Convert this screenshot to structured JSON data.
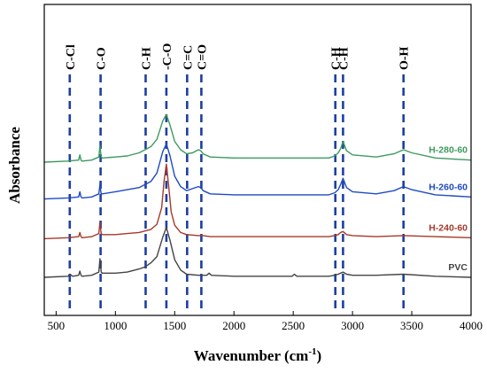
{
  "chart_data": {
    "type": "line",
    "title": "",
    "xlabel": "Wavenumber (cm",
    "xlabel_sup": "-1",
    "xlabel_close": ")",
    "ylabel": "Absorbance",
    "xlim": [
      400,
      4000
    ],
    "xticks": [
      "500",
      "1000",
      "1500",
      "2000",
      "2500",
      "3000",
      "3500",
      "4000"
    ],
    "grid": false,
    "band_color": "#1f3f9f",
    "bands": [
      {
        "label": "C-Cl",
        "x": 615
      },
      {
        "label": "C-O",
        "x": 875
      },
      {
        "label": "C-H",
        "x": 1255
      },
      {
        "label": "-C-O",
        "x": 1430
      },
      {
        "label": "C=C",
        "x": 1605
      },
      {
        "label": "C=O",
        "x": 1725
      },
      {
        "label": "C-H",
        "x": 2855
      },
      {
        "label": "C-H",
        "x": 2920
      },
      {
        "label": "O-H",
        "x": 3430
      }
    ],
    "series": [
      {
        "name": "H-280-60",
        "color": "#3d9a5e",
        "baseline": 1.0,
        "scale": 0.9,
        "x": [
          400,
          600,
          690,
          700,
          710,
          720,
          800,
          860,
          870,
          875,
          880,
          890,
          1000,
          1100,
          1200,
          1250,
          1300,
          1350,
          1400,
          1430,
          1460,
          1500,
          1550,
          1600,
          1650,
          1700,
          1720,
          1740,
          1800,
          2000,
          2500,
          2800,
          2850,
          2880,
          2900,
          2920,
          2950,
          3000,
          3200,
          3350,
          3430,
          3500,
          3700,
          4000
        ],
        "y": [
          0.0,
          0.01,
          0.02,
          0.07,
          0.02,
          0.01,
          0.02,
          0.05,
          0.16,
          0.1,
          0.05,
          0.04,
          0.05,
          0.06,
          0.09,
          0.12,
          0.15,
          0.22,
          0.4,
          0.46,
          0.36,
          0.2,
          0.12,
          0.08,
          0.09,
          0.12,
          0.11,
          0.08,
          0.05,
          0.04,
          0.04,
          0.04,
          0.06,
          0.09,
          0.13,
          0.2,
          0.11,
          0.07,
          0.05,
          0.08,
          0.12,
          0.09,
          0.04,
          0.02
        ]
      },
      {
        "name": "H-260-60",
        "color": "#1f4ac1",
        "baseline": 0.68,
        "scale": 0.9,
        "x": [
          400,
          600,
          690,
          700,
          710,
          720,
          800,
          860,
          870,
          875,
          880,
          890,
          1000,
          1100,
          1200,
          1250,
          1300,
          1350,
          1400,
          1430,
          1460,
          1500,
          1550,
          1600,
          1650,
          1700,
          1720,
          1740,
          1800,
          2000,
          2500,
          2800,
          2850,
          2880,
          2900,
          2920,
          2950,
          3000,
          3200,
          3350,
          3430,
          3500,
          3700,
          4000
        ],
        "y": [
          0.0,
          0.01,
          0.02,
          0.07,
          0.02,
          0.01,
          0.02,
          0.05,
          0.14,
          0.09,
          0.05,
          0.05,
          0.07,
          0.09,
          0.11,
          0.14,
          0.17,
          0.25,
          0.46,
          0.53,
          0.42,
          0.22,
          0.12,
          0.08,
          0.1,
          0.12,
          0.11,
          0.08,
          0.05,
          0.04,
          0.04,
          0.04,
          0.06,
          0.09,
          0.14,
          0.2,
          0.11,
          0.07,
          0.05,
          0.08,
          0.12,
          0.09,
          0.04,
          0.02
        ]
      },
      {
        "name": "H-240-60",
        "color": "#a33a2a",
        "baseline": 0.335,
        "scale": 0.9,
        "x": [
          400,
          600,
          690,
          700,
          710,
          720,
          800,
          860,
          870,
          875,
          880,
          890,
          1000,
          1100,
          1200,
          1300,
          1350,
          1390,
          1410,
          1430,
          1450,
          1470,
          1500,
          1550,
          1600,
          1700,
          1720,
          1740,
          1800,
          2000,
          2500,
          2800,
          2850,
          2880,
          2900,
          2920,
          2950,
          3000,
          3200,
          3430,
          3700,
          4000
        ],
        "y": [
          0.0,
          0.01,
          0.02,
          0.06,
          0.02,
          0.01,
          0.02,
          0.05,
          0.16,
          0.1,
          0.05,
          0.04,
          0.04,
          0.05,
          0.06,
          0.09,
          0.14,
          0.3,
          0.55,
          0.72,
          0.5,
          0.26,
          0.13,
          0.06,
          0.04,
          0.03,
          0.03,
          0.03,
          0.02,
          0.02,
          0.02,
          0.02,
          0.03,
          0.04,
          0.06,
          0.07,
          0.04,
          0.03,
          0.02,
          0.03,
          0.02,
          0.01
        ]
      },
      {
        "name": "PVC",
        "color": "#444444",
        "baseline": 0.0,
        "scale": 0.9,
        "x": [
          400,
          600,
          615,
          640,
          690,
          700,
          710,
          720,
          800,
          860,
          870,
          875,
          880,
          890,
          1000,
          1100,
          1200,
          1250,
          1300,
          1350,
          1400,
          1430,
          1460,
          1500,
          1550,
          1600,
          1700,
          1770,
          1790,
          1810,
          2000,
          2490,
          2510,
          2530,
          2800,
          2850,
          2880,
          2900,
          2920,
          2950,
          3000,
          3200,
          3430,
          3700,
          4000
        ],
        "y": [
          0.0,
          0.01,
          0.03,
          0.01,
          0.02,
          0.06,
          0.02,
          0.01,
          0.02,
          0.05,
          0.18,
          0.12,
          0.05,
          0.04,
          0.04,
          0.05,
          0.08,
          0.1,
          0.14,
          0.2,
          0.39,
          0.48,
          0.36,
          0.17,
          0.07,
          0.03,
          0.02,
          0.02,
          0.04,
          0.02,
          0.01,
          0.01,
          0.03,
          0.01,
          0.01,
          0.02,
          0.03,
          0.04,
          0.05,
          0.03,
          0.02,
          0.02,
          0.03,
          0.01,
          0.0
        ]
      }
    ]
  }
}
